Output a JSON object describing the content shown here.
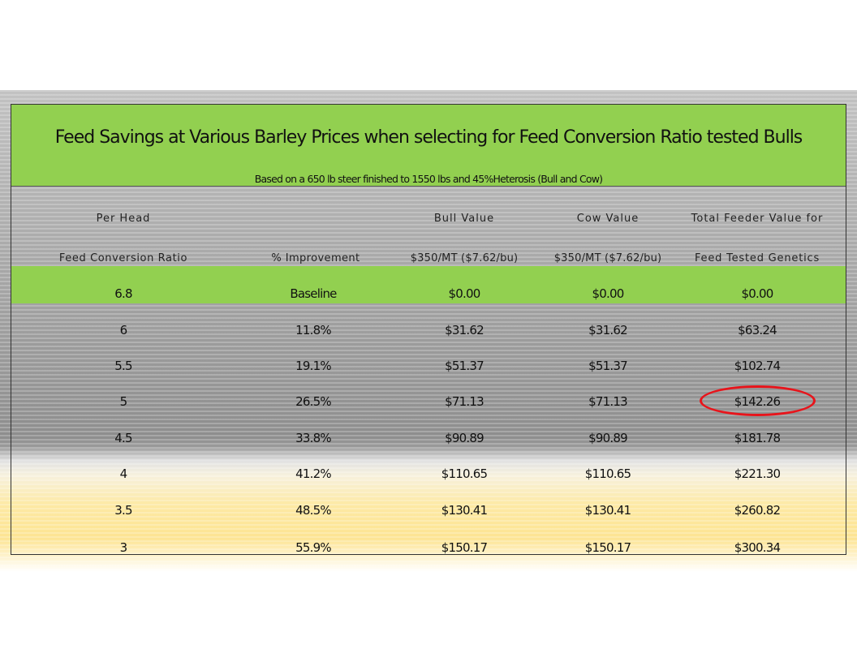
{
  "title": "Feed Savings at Various Barley Prices when selecting for Feed Conversion Ratio tested Bulls",
  "subtitle": "Based on a 650 lb steer finished to 1550 lbs and 45%Heterosis (Bull and Cow)",
  "header_row1": [
    "Per Head",
    "",
    "Bull Value",
    "Cow Value",
    "Total Feeder Value for"
  ],
  "header_row2": [
    "Feed Conversion Ratio",
    "% Improvement",
    "$350/MT ($7.62/bu)",
    "$350/MT ($7.62/bu)",
    "Feed Tested Genetics"
  ],
  "rows": [
    [
      "6.8",
      "Baseline",
      "$0.00",
      "$0.00",
      "$0.00"
    ],
    [
      "6",
      "11.8%",
      "$31.62",
      "$31.62",
      "$63.24"
    ],
    [
      "5.5",
      "19.1%",
      "$51.37",
      "$51.37",
      "$102.74"
    ],
    [
      "5",
      "26.5%",
      "$71.13",
      "$71.13",
      "$142.26"
    ],
    [
      "4.5",
      "33.8%",
      "$90.89",
      "$90.89",
      "$181.78"
    ],
    [
      "4",
      "41.2%",
      "$110.65",
      "$110.65",
      "$221.30"
    ],
    [
      "3.5",
      "48.5%",
      "$130.41",
      "$130.41",
      "$260.82"
    ],
    [
      "3",
      "55.9%",
      "$150.17",
      "$150.17",
      "$300.34"
    ]
  ],
  "colors": {
    "title_green": "#92d050",
    "highlight": "#e8141b"
  }
}
